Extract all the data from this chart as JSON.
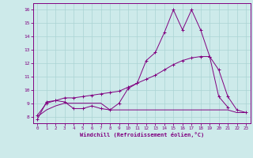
{
  "line1_x": [
    0,
    1,
    2,
    3,
    4,
    5,
    6,
    7,
    8,
    9,
    10,
    11,
    12,
    13,
    14,
    15,
    16,
    17,
    18,
    19,
    20,
    21
  ],
  "line1_y": [
    7.8,
    9.1,
    9.2,
    9.1,
    8.6,
    8.6,
    8.8,
    8.6,
    8.5,
    9.0,
    10.1,
    10.5,
    12.2,
    12.8,
    14.3,
    16.0,
    14.5,
    16.0,
    14.5,
    12.5,
    9.5,
    8.7
  ],
  "line2_x": [
    0,
    1,
    2,
    3,
    4,
    5,
    6,
    7,
    8,
    9,
    10,
    11,
    12,
    13,
    14,
    15,
    16,
    17,
    18,
    19,
    20,
    21,
    22,
    23
  ],
  "line2_y": [
    8.1,
    9.0,
    9.2,
    9.4,
    9.4,
    9.5,
    9.6,
    9.7,
    9.8,
    9.9,
    10.2,
    10.5,
    10.8,
    11.1,
    11.5,
    11.9,
    12.2,
    12.4,
    12.5,
    12.5,
    11.5,
    9.5,
    8.5,
    8.3
  ],
  "line3_x": [
    0,
    1,
    2,
    3,
    4,
    5,
    6,
    7,
    8,
    9,
    10,
    11,
    12,
    13,
    14,
    15,
    16,
    17,
    18,
    19,
    20,
    21,
    22,
    23
  ],
  "line3_y": [
    8.0,
    8.5,
    8.8,
    9.0,
    9.0,
    9.0,
    9.0,
    9.0,
    8.5,
    8.5,
    8.5,
    8.5,
    8.5,
    8.5,
    8.5,
    8.5,
    8.5,
    8.5,
    8.5,
    8.5,
    8.5,
    8.5,
    8.3,
    8.3
  ],
  "color": "#800080",
  "bg_color": "#cdeaea",
  "grid_color": "#aad4d4",
  "xlabel": "Windchill (Refroidissement éolien,°C)",
  "ylim": [
    7.5,
    16.5
  ],
  "xlim": [
    -0.5,
    23.5
  ],
  "yticks": [
    8,
    9,
    10,
    11,
    12,
    13,
    14,
    15,
    16
  ],
  "xticks": [
    0,
    1,
    2,
    3,
    4,
    5,
    6,
    7,
    8,
    9,
    10,
    11,
    12,
    13,
    14,
    15,
    16,
    17,
    18,
    19,
    20,
    21,
    22,
    23
  ]
}
